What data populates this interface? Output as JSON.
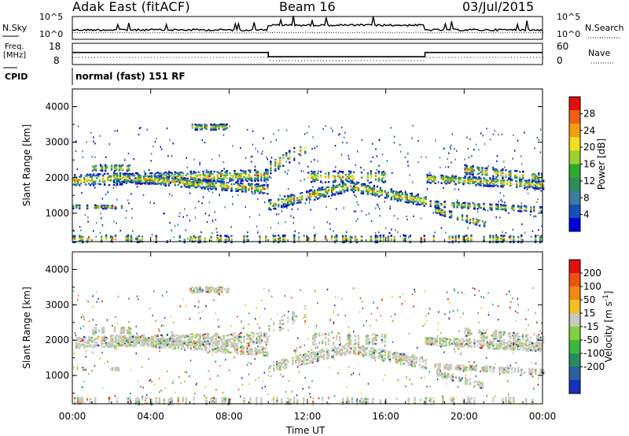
{
  "header": {
    "title": "Adak East (fitACF)",
    "beam": "Beam 16",
    "date": "03/Jul/2015"
  },
  "top_panels": {
    "nsky_label": "N.Sky",
    "nsky_ticks": [
      "10^5",
      "10^0"
    ],
    "nsearch_label": "N.Search",
    "nsearch_ticks": [
      "10^5",
      "10^0"
    ],
    "freq_label": "Freq.",
    "freq_unit": "[MHz]",
    "freq_ticks": [
      "18",
      "8"
    ],
    "nave_label": "Nave",
    "nave_ticks": [
      "60",
      "0"
    ],
    "cpid_label": "CPID",
    "cpid_text": "normal (fast) 151 RF"
  },
  "chart_data": [
    {
      "type": "heatmap",
      "name": "power",
      "ylabel": "Slant Range [km]",
      "ylim": [
        200,
        4500
      ],
      "yticks": [
        "4000",
        "3000",
        "2000",
        "1000"
      ],
      "ytick_values": [
        4000,
        3000,
        2000,
        1000
      ],
      "colorbar_label": "Power [dB]",
      "colorbar_ticks": [
        "28",
        "24",
        "20",
        "16",
        "12",
        "8",
        "4"
      ],
      "colorbar_values": [
        28,
        24,
        20,
        16,
        12,
        8,
        4
      ],
      "colorbar_range": [
        0,
        32
      ],
      "colors": [
        "#0000d8",
        "#1850b8",
        "#3c7c9c",
        "#2e8c5a",
        "#30a830",
        "#9cd030",
        "#f0e020",
        "#f0a010",
        "#f06010",
        "#e01010"
      ]
    },
    {
      "type": "heatmap",
      "name": "velocity",
      "ylabel": "Slant Range [km]",
      "ylim": [
        200,
        4500
      ],
      "yticks": [
        "4000",
        "3000",
        "2000",
        "1000"
      ],
      "ytick_values": [
        4000,
        3000,
        2000,
        1000
      ],
      "colorbar_label": "Velocity [m s",
      "colorbar_label_sup": "-1",
      "colorbar_label_end": "]",
      "colorbar_ticks": [
        "200",
        "100",
        "50",
        "15",
        "-15",
        "-50",
        "-100",
        "-200"
      ],
      "colors": [
        "#1830c0",
        "#2c60a0",
        "#2a8a60",
        "#3cb840",
        "#80d040",
        "#c8c8c0",
        "#f0c020",
        "#f08a10",
        "#f05010",
        "#e01010"
      ]
    }
  ],
  "x_axis": {
    "label": "Time UT",
    "ticks": [
      "00:00",
      "04:00",
      "08:00",
      "12:00",
      "16:00",
      "20:00",
      "00:00"
    ],
    "tick_hours": [
      0,
      4,
      8,
      12,
      16,
      20,
      24
    ]
  },
  "freq_series": {
    "segments": [
      {
        "from": 0,
        "to": 10,
        "mhz": 13.5
      },
      {
        "from": 10,
        "to": 18,
        "mhz": 10.5
      },
      {
        "from": 18,
        "to": 24,
        "mhz": 13.5
      }
    ]
  }
}
